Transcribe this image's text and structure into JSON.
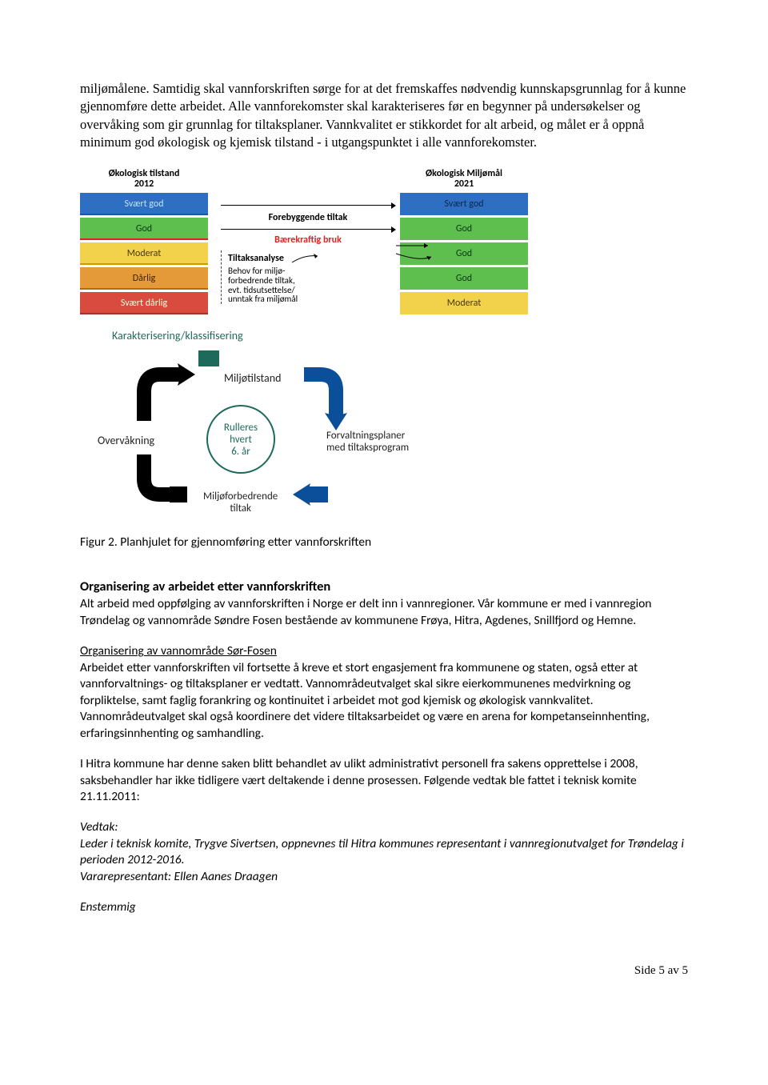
{
  "intro_paragraph": "miljømålene. Samtidig skal vannforskriften sørge for at det fremskaffes nødvendig kunnskapsgrunnlag for å kunne gjennomføre dette arbeidet. Alle vannforekomster skal karakteriseres før en begynner på undersøkelser og overvåking som gir grunnlag for tiltaksplaner. Vannkvalitet er stikkordet for alt arbeid, og målet er å oppnå minimum god økologisk og kjemisk tilstand - i utgangspunktet i alle vannforekomster.",
  "status_diagram": {
    "left_header": "Økologisk tilstand\n2012",
    "right_header": "Økologisk Miljømål\n2021",
    "left_bars": [
      {
        "label": "Svært god",
        "bg": "#2f6fc2",
        "fg": "#bfe2ff",
        "underline": "#1f55a8"
      },
      {
        "label": "God",
        "bg": "#5fbf4e",
        "fg": "#0b3a14",
        "underline": "#d22"
      },
      {
        "label": "Moderat",
        "bg": "#f2d24a",
        "fg": "#4a3900",
        "underline": "#c89b00"
      },
      {
        "label": "Dårlig",
        "bg": "#e59a3a",
        "fg": "#3a2400",
        "underline": "#b86a00"
      },
      {
        "label": "Svært dårlig",
        "bg": "#d94b3f",
        "fg": "#ffd",
        "underline": "#a1332a"
      }
    ],
    "right_bars": [
      {
        "label": "Svært god",
        "bg": "#2f6fc2",
        "fg": "#0a2850"
      },
      {
        "label": "God",
        "bg": "#5fbf4e",
        "fg": "#0b3a14"
      },
      {
        "label": "God",
        "bg": "#5fbf4e",
        "fg": "#0b3a14"
      },
      {
        "label": "God",
        "bg": "#5fbf4e",
        "fg": "#0b3a14"
      },
      {
        "label": "Moderat",
        "bg": "#f2d24a",
        "fg": "#4a3900"
      }
    ],
    "mid_labels": {
      "forebyggende": "Forebyggende tiltak",
      "baerekraftig": "Bærekraftig bruk",
      "tiltaksanalyse": "Tiltaksanalyse",
      "behov": "Behov for miljø-\nforbedrende tiltak,\nevt. tidsutsettelse/\nunntak fra miljømål"
    },
    "karakterisering": "Karakterisering/klassifisering"
  },
  "cycle": {
    "top": "Miljøtilstand",
    "right": "Forvaltningsplaner\nmed tiltaksprogram",
    "bottom": "Miljøforbedrende\ntiltak",
    "left": "Overvåkning",
    "center": "Rulleres\nhvert\n6. år"
  },
  "figcaption": "Figur 2. Planhjulet for gjennomføring etter vannforskriften",
  "section1": {
    "heading": "Organisering av arbeidet etter vannforskriften",
    "p1": "Alt arbeid med oppfølging av vannforskriften i Norge er delt inn i vannregioner. Vår kommune er med i vannregion Trøndelag og vannområde Søndre Fosen bestående av kommunene Frøya, Hitra, Agdenes, Snillfjord og Hemne.",
    "subhead": "Organisering av vannområde Sør-Fosen",
    "p2": "Arbeidet etter vannforskriften vil fortsette å kreve et stort engasjement fra kommunene og staten, også etter at vannforvaltnings- og tiltaksplaner er vedtatt. Vannområdeutvalget skal sikre eierkommunenes medvirkning og forpliktelse, samt faglig forankring og kontinuitet i arbeidet mot god kjemisk og økologisk vannkvalitet. Vannområdeutvalget skal også koordinere det videre tiltaksarbeidet og være en arena for kompetanseinnhenting, erfaringsinnhenting og samhandling.",
    "p3": "I Hitra kommune har denne saken blitt behandlet av ulikt administrativt personell fra sakens opprettelse i 2008, saksbehandler har ikke tidligere vært deltakende i denne prosessen. Følgende vedtak ble fattet i teknisk komite 21.11.2011:",
    "vedtak_label": "Vedtak:",
    "vedtak_body": "Leder i teknisk komite, Trygve Sivertsen, oppnevnes til Hitra kommunes representant i vannregionutvalget for Trøndelag i perioden 2012-2016.\nVararepresentant: Ellen Aanes Draagen",
    "enstemmig": "Enstemmig"
  },
  "footer": "Side 5 av 5"
}
